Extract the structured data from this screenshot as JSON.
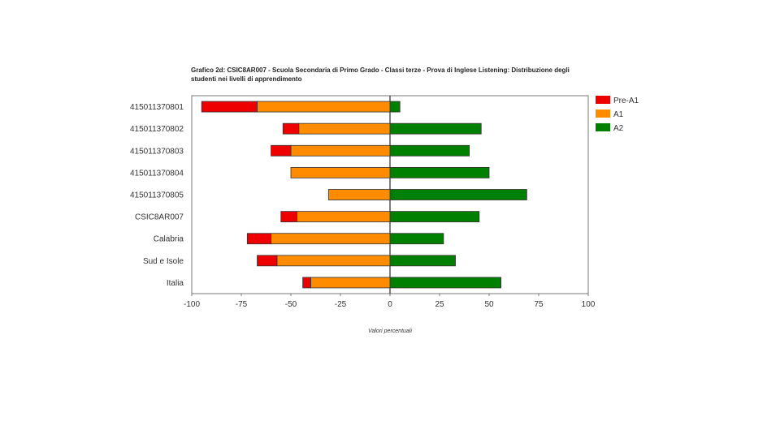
{
  "chart_data": {
    "type": "bar",
    "orientation": "horizontal-diverging",
    "title": "Grafico 2d: CSIC8AR007 - Scuola Secondaria di Primo Grado - Classi terze - Prova di Inglese Listening: Distribuzione degli studenti nei livelli di apprendimento",
    "xlabel": "Valori percentuali",
    "xlim": [
      -100,
      100
    ],
    "xticks": [
      -100,
      -75,
      -50,
      -25,
      0,
      25,
      50,
      75,
      100
    ],
    "categories": [
      "4150113708O1",
      "4150113708O2",
      "4150113708O3",
      "4150113708O4",
      "4150113708O5",
      "CSIC8AR007",
      "Calabria",
      "Sud e Isole",
      "Italia"
    ],
    "category_labels": [
      "415011370801",
      "415011370802",
      "415011370803",
      "415011370804",
      "415011370805",
      "CSIC8AR007",
      "Calabria",
      "Sud e Isole",
      "Italia"
    ],
    "series": [
      {
        "name": "Pre-A1",
        "color": "#ee0000",
        "values": [
          28,
          8,
          10,
          0,
          0,
          8,
          12,
          10,
          4
        ]
      },
      {
        "name": "A1",
        "color": "#ff8c00",
        "values": [
          67,
          46,
          50,
          50,
          31,
          47,
          60,
          57,
          40
        ]
      },
      {
        "name": "A2",
        "color": "#008000",
        "values": [
          5,
          46,
          40,
          50,
          69,
          45,
          27,
          33,
          56
        ]
      }
    ],
    "legend_position": "right",
    "grid": false
  }
}
